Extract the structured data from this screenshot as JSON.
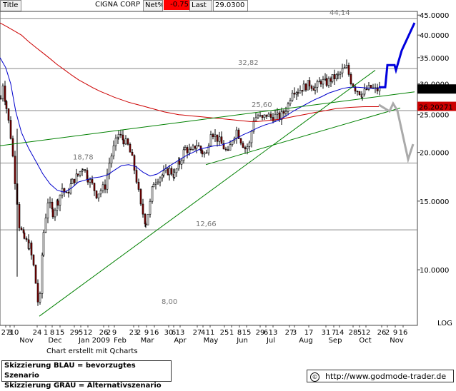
{
  "header": {
    "title_label": "Title",
    "symbol": "CIGNA CORP",
    "netpct_label": "Net%",
    "netpct_value": "-0.75",
    "last_label": "Last",
    "last_value": "29.0300"
  },
  "chart_data": {
    "type": "candlestick",
    "y_scale": "log",
    "ylim": [
      7.2,
      46
    ],
    "y_ticks": [
      {
        "v": 45,
        "label": "45.0000"
      },
      {
        "v": 40,
        "label": "40.0000"
      },
      {
        "v": 35,
        "label": "35.0000"
      },
      {
        "v": 30,
        "label": "30.0000"
      },
      {
        "v": 25,
        "label": "25.0000"
      },
      {
        "v": 20,
        "label": "20.0000"
      },
      {
        "v": 15,
        "label": "15.0000"
      },
      {
        "v": 10,
        "label": "10.0000"
      }
    ],
    "y_axis_note": "LOG",
    "price_boxes": [
      {
        "value": 29.03,
        "label": "29.0300",
        "bg": "#000000",
        "fg": "#ffffff"
      },
      {
        "value": 26.2,
        "label": "26.20271",
        "bg": "#cc0000",
        "fg": "#ffffff"
      }
    ],
    "x_axis_ticks": [
      {
        "t": 8,
        "label": "27"
      },
      {
        "t": 14,
        "label": "3"
      },
      {
        "t": 20,
        "label": "10"
      },
      {
        "t": 52,
        "label": "24"
      },
      {
        "t": 64,
        "label": "1"
      },
      {
        "t": 73,
        "label": "8"
      },
      {
        "t": 84,
        "label": "15"
      },
      {
        "t": 104,
        "label": "29"
      },
      {
        "t": 113,
        "label": "5"
      },
      {
        "t": 123,
        "label": "12"
      },
      {
        "t": 145,
        "label": "26"
      },
      {
        "t": 152,
        "label": "2"
      },
      {
        "t": 160,
        "label": "9"
      },
      {
        "t": 187,
        "label": "23"
      },
      {
        "t": 194,
        "label": "2"
      },
      {
        "t": 205,
        "label": "9"
      },
      {
        "t": 216,
        "label": "16"
      },
      {
        "t": 236,
        "label": "30"
      },
      {
        "t": 243,
        "label": "6"
      },
      {
        "t": 252,
        "label": "13"
      },
      {
        "t": 276,
        "label": "27"
      },
      {
        "t": 284,
        "label": "4"
      },
      {
        "t": 294,
        "label": "11"
      },
      {
        "t": 314,
        "label": "25"
      },
      {
        "t": 324,
        "label": "1"
      },
      {
        "t": 335,
        "label": "8"
      },
      {
        "t": 345,
        "label": "15"
      },
      {
        "t": 364,
        "label": "29"
      },
      {
        "t": 372,
        "label": "6"
      },
      {
        "t": 382,
        "label": "13"
      },
      {
        "t": 405,
        "label": "27"
      },
      {
        "t": 412,
        "label": "3"
      },
      {
        "t": 432,
        "label": "17"
      },
      {
        "t": 456,
        "label": "31"
      },
      {
        "t": 467,
        "label": "7"
      },
      {
        "t": 475,
        "label": "14"
      },
      {
        "t": 494,
        "label": "28"
      },
      {
        "t": 503,
        "label": "5"
      },
      {
        "t": 512,
        "label": "12"
      },
      {
        "t": 534,
        "label": "26"
      },
      {
        "t": 542,
        "label": "2"
      },
      {
        "t": 553,
        "label": "9"
      },
      {
        "t": 564,
        "label": "16"
      }
    ],
    "x_axis_months": [
      {
        "t": 37,
        "label": "Nov"
      },
      {
        "t": 77,
        "label": "Dec"
      },
      {
        "t": 132,
        "label": "Jan 2009"
      },
      {
        "t": 168,
        "label": "Feb"
      },
      {
        "t": 206,
        "label": "Mar"
      },
      {
        "t": 252,
        "label": "Apr"
      },
      {
        "t": 295,
        "label": "May"
      },
      {
        "t": 339,
        "label": "Jun"
      },
      {
        "t": 379,
        "label": "Jul"
      },
      {
        "t": 428,
        "label": "Aug"
      },
      {
        "t": 469,
        "label": "Sep"
      },
      {
        "t": 511,
        "label": "Oct"
      },
      {
        "t": 555,
        "label": "Nov"
      }
    ],
    "anchors": [
      [
        0,
        27.5
      ],
      [
        3,
        30
      ],
      [
        8,
        26
      ],
      [
        14,
        22
      ],
      [
        20,
        17
      ],
      [
        26,
        13
      ],
      [
        33,
        12
      ],
      [
        40,
        11.5
      ],
      [
        46,
        10.2
      ],
      [
        52,
        8.3
      ],
      [
        55,
        8.5
      ],
      [
        60,
        12.5
      ],
      [
        66,
        15
      ],
      [
        73,
        14
      ],
      [
        80,
        15
      ],
      [
        86,
        16.2
      ],
      [
        92,
        15.5
      ],
      [
        100,
        16.8
      ],
      [
        108,
        17.5
      ],
      [
        115,
        18.4
      ],
      [
        122,
        17.2
      ],
      [
        128,
        16.5
      ],
      [
        134,
        15.6
      ],
      [
        140,
        16
      ],
      [
        146,
        16.4
      ],
      [
        152,
        18.8
      ],
      [
        158,
        20.5
      ],
      [
        165,
        22.2
      ],
      [
        172,
        21.5
      ],
      [
        178,
        20.8
      ],
      [
        184,
        19.2
      ],
      [
        190,
        17
      ],
      [
        196,
        14.5
      ],
      [
        203,
        13.2
      ],
      [
        209,
        14.8
      ],
      [
        214,
        16.8
      ],
      [
        220,
        17.2
      ],
      [
        228,
        17.6
      ],
      [
        236,
        18
      ],
      [
        243,
        17.5
      ],
      [
        250,
        18.8
      ],
      [
        258,
        20.5
      ],
      [
        266,
        20
      ],
      [
        274,
        21
      ],
      [
        282,
        20
      ],
      [
        288,
        19.8
      ],
      [
        294,
        22.8
      ],
      [
        300,
        22
      ],
      [
        306,
        21.4
      ],
      [
        312,
        20.6
      ],
      [
        318,
        19.8
      ],
      [
        324,
        21.7
      ],
      [
        330,
        22.8
      ],
      [
        336,
        21.5
      ],
      [
        342,
        20.5
      ],
      [
        348,
        21
      ],
      [
        354,
        24.4
      ],
      [
        360,
        24.8
      ],
      [
        366,
        24.3
      ],
      [
        372,
        25
      ],
      [
        378,
        24.6
      ],
      [
        384,
        24.8
      ],
      [
        390,
        24.6
      ],
      [
        396,
        25.3
      ],
      [
        402,
        26.5
      ],
      [
        408,
        29
      ],
      [
        416,
        28.8
      ],
      [
        424,
        29.4
      ],
      [
        432,
        30
      ],
      [
        440,
        29.3
      ],
      [
        448,
        30.5
      ],
      [
        456,
        30.2
      ],
      [
        464,
        31
      ],
      [
        472,
        31.4
      ],
      [
        478,
        32.4
      ],
      [
        484,
        33
      ],
      [
        490,
        30.5
      ],
      [
        496,
        29.2
      ],
      [
        502,
        28.6
      ],
      [
        506,
        28.2
      ],
      [
        512,
        29
      ],
      [
        518,
        29.3
      ],
      [
        524,
        28.9
      ],
      [
        530,
        29.03
      ]
    ],
    "sma_short": [
      [
        0,
        35
      ],
      [
        8,
        33
      ],
      [
        15,
        30
      ],
      [
        22,
        25.5
      ],
      [
        30,
        22.5
      ],
      [
        40,
        20.5
      ],
      [
        50,
        19
      ],
      [
        60,
        17.6
      ],
      [
        70,
        16.6
      ],
      [
        80,
        16
      ],
      [
        90,
        15.8
      ],
      [
        100,
        16.2
      ],
      [
        110,
        16.8
      ],
      [
        120,
        17
      ],
      [
        130,
        17.2
      ],
      [
        140,
        17.3
      ],
      [
        150,
        17.5
      ],
      [
        160,
        18
      ],
      [
        170,
        18.5
      ],
      [
        180,
        18.6
      ],
      [
        190,
        18.4
      ],
      [
        200,
        17.8
      ],
      [
        210,
        17.4
      ],
      [
        220,
        17.6
      ],
      [
        230,
        18.1
      ],
      [
        240,
        18.6
      ],
      [
        250,
        19.1
      ],
      [
        260,
        19.6
      ],
      [
        270,
        20
      ],
      [
        280,
        20.4
      ],
      [
        290,
        20.6
      ],
      [
        300,
        20.8
      ],
      [
        310,
        20.9
      ],
      [
        320,
        21.2
      ],
      [
        330,
        21.7
      ],
      [
        340,
        22.2
      ],
      [
        350,
        22.6
      ],
      [
        360,
        23.1
      ],
      [
        370,
        23.5
      ],
      [
        380,
        23.8
      ],
      [
        390,
        24.2
      ],
      [
        400,
        24.8
      ],
      [
        410,
        25.5
      ],
      [
        420,
        26.1
      ],
      [
        430,
        26.7
      ],
      [
        440,
        27.3
      ],
      [
        450,
        27.8
      ],
      [
        460,
        28.4
      ],
      [
        470,
        28.8
      ],
      [
        480,
        29.2
      ],
      [
        490,
        29.4
      ],
      [
        500,
        29.4
      ],
      [
        510,
        29.3
      ],
      [
        520,
        29.2
      ],
      [
        530,
        29.2
      ]
    ],
    "sma_long": [
      [
        0,
        43
      ],
      [
        10,
        42
      ],
      [
        20,
        41
      ],
      [
        30,
        40
      ],
      [
        40,
        38.5
      ],
      [
        50,
        37.2
      ],
      [
        60,
        36
      ],
      [
        70,
        34.8
      ],
      [
        80,
        33.6
      ],
      [
        90,
        32.6
      ],
      [
        100,
        31.6
      ],
      [
        110,
        30.7
      ],
      [
        120,
        30
      ],
      [
        130,
        29.3
      ],
      [
        140,
        28.7
      ],
      [
        150,
        28.2
      ],
      [
        160,
        27.7
      ],
      [
        170,
        27.3
      ],
      [
        180,
        26.9
      ],
      [
        190,
        26.6
      ],
      [
        200,
        26.3
      ],
      [
        210,
        26
      ],
      [
        220,
        25.7
      ],
      [
        230,
        25.4
      ],
      [
        240,
        25.2
      ],
      [
        250,
        25
      ],
      [
        260,
        24.9
      ],
      [
        270,
        24.8
      ],
      [
        280,
        24.7
      ],
      [
        290,
        24.6
      ],
      [
        300,
        24.5
      ],
      [
        310,
        24.4
      ],
      [
        320,
        24.3
      ],
      [
        330,
        24.2
      ],
      [
        340,
        24.1
      ],
      [
        350,
        24
      ],
      [
        360,
        24
      ],
      [
        370,
        24.1
      ],
      [
        380,
        24.2
      ],
      [
        390,
        24.3
      ],
      [
        400,
        24.5
      ],
      [
        410,
        24.7
      ],
      [
        420,
        24.9
      ],
      [
        430,
        25.1
      ],
      [
        440,
        25.3
      ],
      [
        450,
        25.5
      ],
      [
        460,
        25.7
      ],
      [
        470,
        25.9
      ],
      [
        480,
        26
      ],
      [
        490,
        26.1
      ],
      [
        500,
        26.15
      ],
      [
        510,
        26.2
      ],
      [
        520,
        26.2
      ],
      [
        530,
        26.2
      ]
    ],
    "trendlines": [
      {
        "from": [
          0,
          20.8
        ],
        "to": [
          580,
          28.6
        ]
      },
      {
        "from": [
          55,
          7.6
        ],
        "to": [
          525,
          32.5
        ]
      },
      {
        "from": [
          288,
          18.6
        ],
        "to": [
          560,
          26
        ]
      }
    ],
    "hlines": [
      {
        "v": 44.14
      },
      {
        "v": 32.82
      },
      {
        "v": 25.6
      },
      {
        "v": 18.78
      },
      {
        "v": 12.66
      }
    ],
    "level_labels": [
      {
        "t": 461,
        "v": 44.14,
        "label": "44,14"
      },
      {
        "t": 333,
        "v": 32.82,
        "label": "32,82"
      },
      {
        "t": 352,
        "v": 25.6,
        "label": "25,60"
      },
      {
        "t": 102,
        "v": 18.78,
        "label": "18,78"
      },
      {
        "t": 274,
        "v": 12.66,
        "label": "12,66"
      },
      {
        "t": 226,
        "v": 8.0,
        "label": "8,00"
      }
    ],
    "scenario_blue": [
      [
        530,
        29.4
      ],
      [
        539,
        29.4
      ],
      [
        542,
        33.5
      ],
      [
        552,
        33.5
      ],
      [
        554,
        32.5
      ],
      [
        562,
        36.5
      ],
      [
        580,
        43
      ]
    ],
    "scenario_grey": [
      [
        530,
        26.5
      ],
      [
        545,
        25.5
      ],
      [
        550,
        26.7
      ],
      [
        556,
        25.6
      ],
      [
        571,
        19.2
      ],
      [
        578,
        21
      ]
    ]
  },
  "footer": {
    "credit": "Chart erstellt mit Qcharts",
    "legend_blue": "Skizzierung BLAU = bevorzugtes Szenario",
    "legend_grey": "Skizzierung GRAU = Alternativszenario",
    "copyright_symbol": "©",
    "website": "http://www.godmode-trader.de"
  }
}
